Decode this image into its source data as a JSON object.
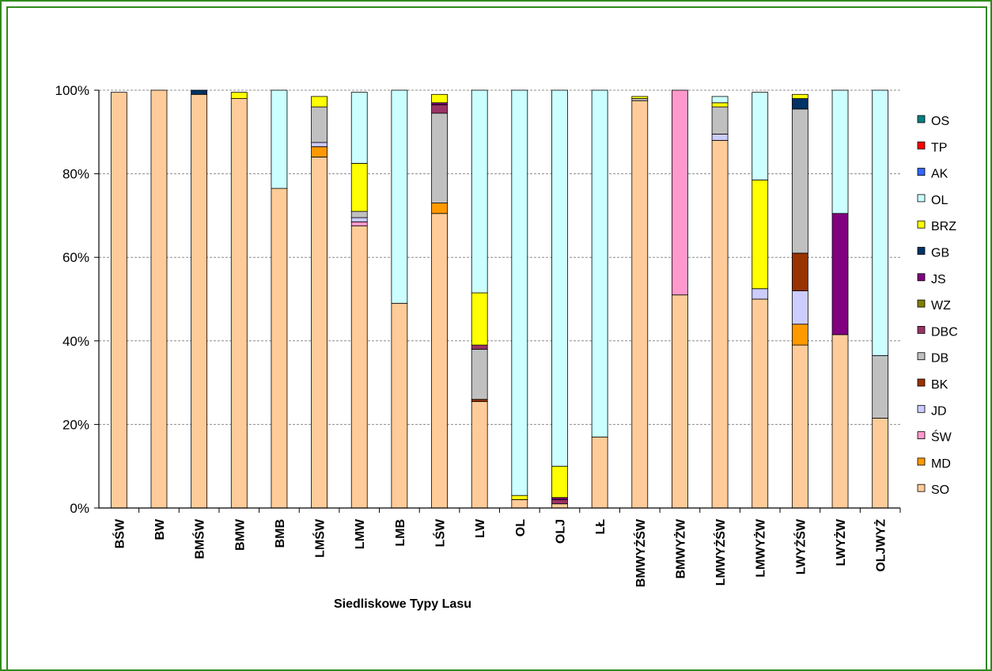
{
  "chart_data": {
    "type": "bar",
    "stacked": "percent",
    "xlabel": "Siedliskowe Typy Lasu",
    "ylabel": "",
    "ylim": [
      0,
      100
    ],
    "yticks": [
      "0%",
      "20%",
      "40%",
      "60%",
      "80%",
      "100%"
    ],
    "grid": true,
    "legend_position": "right",
    "categories": [
      "BŚW",
      "BW",
      "BMŚW",
      "BMW",
      "BMB",
      "LMŚW",
      "LMW",
      "LMB",
      "LŚW",
      "LW",
      "OL",
      "OLJ",
      "LŁ",
      "BMWYŻŚW",
      "BMWYŻW",
      "LMWYŻŚW",
      "LMWYŻW",
      "LWYŻŚW",
      "LWYŻW",
      "OLJWYŻ"
    ],
    "series": [
      {
        "name": "SO",
        "color": "#ffcc99",
        "values": [
          99.5,
          100,
          99,
          98,
          76.5,
          84,
          67.5,
          49,
          70.5,
          25.5,
          2,
          1,
          17,
          97.5,
          51,
          88,
          50,
          39,
          41.5,
          21.5
        ]
      },
      {
        "name": "MD",
        "color": "#ff9900",
        "values": [
          0,
          0,
          0,
          0,
          0,
          2.5,
          0,
          0,
          2.5,
          0,
          0,
          0,
          0,
          0,
          0,
          0,
          0,
          5,
          0,
          0
        ]
      },
      {
        "name": "ŚW",
        "color": "#ff99cc",
        "values": [
          0,
          0,
          0,
          0,
          0,
          0,
          1,
          0,
          0,
          0,
          0,
          0,
          0,
          0,
          49,
          0,
          0,
          0,
          0,
          0
        ]
      },
      {
        "name": "JD",
        "color": "#ccccff",
        "values": [
          0,
          0,
          0,
          0,
          0,
          1,
          1,
          0,
          0,
          0,
          0,
          0,
          0,
          0,
          0,
          1.5,
          2.5,
          8,
          0,
          0
        ]
      },
      {
        "name": "BK",
        "color": "#993300",
        "values": [
          0,
          0,
          0,
          0,
          0,
          0,
          0,
          0,
          0,
          0.5,
          0,
          0,
          0,
          0,
          0,
          0,
          0,
          9,
          0,
          0
        ]
      },
      {
        "name": "DB",
        "color": "#c0c0c0",
        "values": [
          0,
          0,
          0,
          0,
          0,
          8.5,
          1.5,
          0,
          21.5,
          12,
          0,
          0,
          0,
          0.5,
          0,
          6.5,
          0,
          34.5,
          0,
          15
        ]
      },
      {
        "name": "DBC",
        "color": "#993366",
        "values": [
          0,
          0,
          0,
          0,
          0,
          0,
          0,
          0,
          2,
          1,
          0,
          1,
          0,
          0,
          0,
          0,
          0,
          0,
          0,
          0
        ]
      },
      {
        "name": "WZ",
        "color": "#808000",
        "values": [
          0,
          0,
          0,
          0,
          0,
          0,
          0,
          0,
          0,
          0,
          0,
          0,
          0,
          0,
          0,
          0,
          0,
          0,
          0,
          0
        ]
      },
      {
        "name": "JS",
        "color": "#800080",
        "values": [
          0,
          0,
          0,
          0,
          0,
          0,
          0,
          0,
          0.5,
          0,
          0,
          0.5,
          0,
          0,
          0,
          0,
          0,
          0,
          29,
          0
        ]
      },
      {
        "name": "GB",
        "color": "#003366",
        "values": [
          0,
          0,
          1,
          0,
          0,
          0,
          0,
          0,
          0,
          0,
          0,
          0,
          0,
          0,
          0,
          0,
          0,
          2.5,
          0,
          0
        ]
      },
      {
        "name": "BRZ",
        "color": "#ffff00",
        "values": [
          0,
          0,
          0,
          1.5,
          0,
          2.5,
          11.5,
          0,
          2,
          12.5,
          1,
          7.5,
          0,
          0.5,
          0,
          1,
          26,
          1,
          0,
          0
        ]
      },
      {
        "name": "OL",
        "color": "#ccffff",
        "values": [
          0,
          0,
          0,
          0,
          23.5,
          0,
          17,
          51,
          0,
          48.5,
          97,
          90,
          83,
          0,
          0,
          1.5,
          21,
          0,
          29.5,
          63.5
        ]
      },
      {
        "name": "AK",
        "color": "#3366ff",
        "values": [
          0,
          0,
          0,
          0,
          0,
          0,
          0,
          0,
          0,
          0,
          0,
          0,
          0,
          0,
          0,
          0,
          0,
          0,
          0,
          0
        ]
      },
      {
        "name": "TP",
        "color": "#ff0000",
        "values": [
          0,
          0,
          0,
          0,
          0,
          0,
          0,
          0,
          0,
          0,
          0,
          0,
          0,
          0,
          0,
          0,
          0,
          0,
          0,
          0
        ]
      },
      {
        "name": "OS",
        "color": "#008080",
        "values": [
          0,
          0,
          0,
          0,
          0,
          0,
          0,
          0,
          0,
          0,
          0,
          0,
          0,
          0,
          0,
          0,
          0,
          0,
          0,
          0
        ]
      }
    ]
  }
}
